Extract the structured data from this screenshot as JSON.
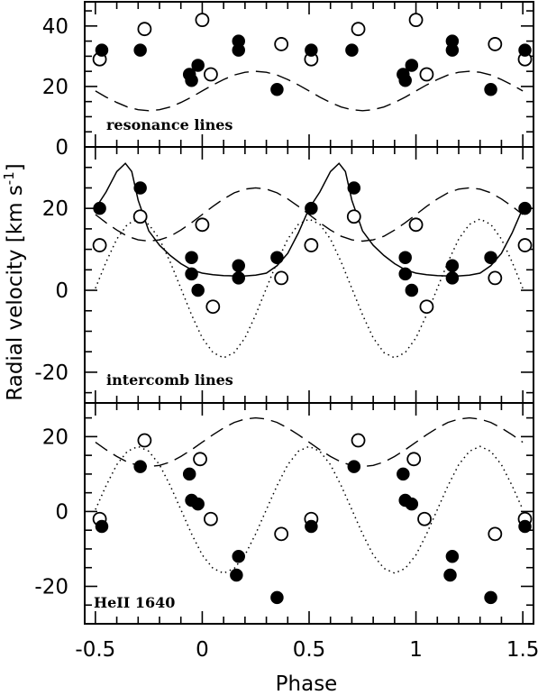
{
  "chart_data": [
    {
      "type": "scatter",
      "annotation": "resonance lines",
      "xlim": [
        -0.55,
        1.55
      ],
      "ylim": [
        0,
        48
      ],
      "yticks_labeled": [
        0,
        20,
        40
      ],
      "filled": {
        "x": [
          -0.47,
          -0.29,
          -0.06,
          -0.05,
          -0.02,
          0.17,
          0.17,
          0.35,
          0.51,
          0.7,
          0.94,
          0.95,
          0.98,
          1.17,
          1.17,
          1.35,
          1.51
        ],
        "y": [
          32,
          32,
          24,
          22,
          27,
          32,
          35,
          19,
          32,
          32,
          24,
          22,
          27,
          32,
          35,
          19,
          32
        ]
      },
      "open": {
        "x": [
          -0.48,
          -0.27,
          0.0,
          0.04,
          0.37,
          0.51,
          0.73,
          1.0,
          1.05,
          1.37,
          1.51
        ],
        "y": [
          29,
          39,
          42,
          24,
          34,
          29,
          39,
          42,
          24,
          34,
          29
        ]
      },
      "curves": [
        {
          "style": "dashed",
          "x": [
            -0.5,
            -0.45,
            -0.4,
            -0.35,
            -0.3,
            -0.25,
            -0.2,
            -0.15,
            -0.1,
            -0.05,
            0,
            0.05,
            0.1,
            0.15,
            0.2,
            0.25,
            0.3,
            0.35,
            0.4,
            0.45,
            0.5,
            0.55,
            0.6,
            0.65,
            0.7,
            0.75,
            0.8,
            0.85,
            0.9,
            0.95,
            1,
            1.05,
            1.1,
            1.15,
            1.2,
            1.25,
            1.3,
            1.35,
            1.4,
            1.45,
            1.5
          ],
          "y": [
            18.5,
            16.5,
            14.7,
            13.2,
            12.3,
            12.0,
            12.3,
            13.2,
            14.7,
            16.5,
            18.5,
            20.5,
            22.3,
            23.8,
            24.7,
            25.0,
            24.7,
            23.8,
            22.3,
            20.5,
            18.5,
            16.5,
            14.7,
            13.2,
            12.3,
            12.0,
            12.3,
            13.2,
            14.7,
            16.5,
            18.5,
            20.5,
            22.3,
            23.8,
            24.7,
            25.0,
            24.7,
            23.8,
            22.3,
            20.5,
            18.5
          ]
        }
      ]
    },
    {
      "type": "scatter",
      "annotation": "intercomb lines",
      "xlim": [
        -0.55,
        1.55
      ],
      "ylim": [
        -27.5,
        35
      ],
      "yticks_labeled": [
        -20,
        0,
        20
      ],
      "ylabel": "Radial velocity [km s",
      "ylabel_sup": "-1",
      "ylabel_end": "]",
      "filled": {
        "x": [
          -0.48,
          -0.29,
          -0.05,
          -0.05,
          -0.02,
          0.17,
          0.17,
          0.35,
          0.51,
          0.71,
          0.95,
          0.95,
          0.98,
          1.17,
          1.17,
          1.35,
          1.51
        ],
        "y": [
          20,
          25,
          8,
          4,
          0,
          6,
          3,
          8,
          20,
          25,
          8,
          4,
          0,
          6,
          3,
          8,
          20
        ]
      },
      "open": {
        "x": [
          -0.48,
          -0.29,
          0.0,
          0.05,
          0.37,
          0.51,
          0.71,
          1.0,
          1.05,
          1.37,
          1.51
        ],
        "y": [
          11,
          18,
          16,
          -4,
          3,
          11,
          18,
          16,
          -4,
          3,
          11
        ]
      },
      "curves": [
        {
          "style": "solid",
          "x": [
            -0.5,
            -0.45,
            -0.4,
            -0.36,
            -0.33,
            -0.3,
            -0.25,
            -0.2,
            -0.15,
            -0.1,
            -0.05,
            0,
            0.05,
            0.1,
            0.15,
            0.2,
            0.25,
            0.3,
            0.35,
            0.4,
            0.45,
            0.5,
            0.55,
            0.6,
            0.64,
            0.67,
            0.7,
            0.75,
            0.8,
            0.85,
            0.9,
            0.95,
            1,
            1.05,
            1.1,
            1.15,
            1.2,
            1.25,
            1.3,
            1.35,
            1.4,
            1.45,
            1.5
          ],
          "y": [
            20,
            24,
            29,
            31,
            29,
            22,
            14.5,
            11,
            8.5,
            6.5,
            5,
            4.2,
            3.8,
            3.6,
            3.5,
            3.5,
            3.7,
            4.2,
            6,
            9,
            14,
            20,
            24,
            29,
            31,
            29,
            22,
            14.5,
            11,
            8.5,
            6.5,
            5,
            4.2,
            3.8,
            3.6,
            3.5,
            3.5,
            3.7,
            4.2,
            6,
            9,
            14,
            20
          ]
        },
        {
          "style": "dotted",
          "x": [
            -0.5,
            -0.45,
            -0.4,
            -0.35,
            -0.3,
            -0.25,
            -0.2,
            -0.15,
            -0.1,
            -0.05,
            0,
            0.05,
            0.1,
            0.15,
            0.2,
            0.25,
            0.3,
            0.35,
            0.4,
            0.45,
            0.5,
            0.55,
            0.6,
            0.65,
            0.7,
            0.75,
            0.8,
            0.85,
            0.9,
            0.95,
            1,
            1.05,
            1.1,
            1.15,
            1.2,
            1.25,
            1.3,
            1.35,
            1.4,
            1.45,
            1.5
          ],
          "y": [
            0.5,
            6.9,
            12.5,
            16.1,
            17.4,
            16.1,
            12.5,
            6.9,
            0.5,
            -6,
            -11.6,
            -15.2,
            -16.5,
            -15.2,
            -11.6,
            -6,
            0.5,
            6.9,
            12.5,
            16.1,
            17.4,
            16.1,
            12.5,
            6.9,
            0.5,
            -6,
            -11.6,
            -15.2,
            -16.5,
            -15.2,
            -11.6,
            -6,
            0.5,
            6.9,
            12.5,
            16.1,
            17.4,
            16.1,
            12.5,
            6.9,
            0.5
          ]
        },
        {
          "style": "dashed",
          "x": [
            -0.5,
            -0.45,
            -0.4,
            -0.35,
            -0.3,
            -0.25,
            -0.2,
            -0.15,
            -0.1,
            -0.05,
            0,
            0.05,
            0.1,
            0.15,
            0.2,
            0.25,
            0.3,
            0.35,
            0.4,
            0.45,
            0.5,
            0.55,
            0.6,
            0.65,
            0.7,
            0.75,
            0.8,
            0.85,
            0.9,
            0.95,
            1,
            1.05,
            1.1,
            1.15,
            1.2,
            1.25,
            1.3,
            1.35,
            1.4,
            1.45,
            1.5
          ],
          "y": [
            18.5,
            16.5,
            14.7,
            13.2,
            12.3,
            12.0,
            12.3,
            13.2,
            14.7,
            16.5,
            18.5,
            20.5,
            22.3,
            23.8,
            24.7,
            25.0,
            24.7,
            23.8,
            22.3,
            20.5,
            18.5,
            16.5,
            14.7,
            13.2,
            12.3,
            12.0,
            12.3,
            13.2,
            14.7,
            16.5,
            18.5,
            20.5,
            22.3,
            23.8,
            24.7,
            25.0,
            24.7,
            23.8,
            22.3,
            20.5,
            18.5
          ]
        }
      ]
    },
    {
      "type": "scatter",
      "annotation": "HeII 1640",
      "xlim": [
        -0.55,
        1.55
      ],
      "ylim": [
        -30,
        29
      ],
      "yticks_labeled": [
        -20,
        0,
        20
      ],
      "xticks_labeled": [
        -0.5,
        0,
        0.5,
        1,
        1.5
      ],
      "xtick_labels": [
        "-0.5",
        "0",
        "0.5",
        "1",
        "1.5"
      ],
      "xlabel": "Phase",
      "filled": {
        "x": [
          -0.47,
          -0.29,
          -0.06,
          -0.05,
          -0.02,
          0.17,
          0.16,
          0.35,
          0.51,
          0.71,
          0.94,
          0.95,
          0.98,
          1.17,
          1.16,
          1.35,
          1.51
        ],
        "y": [
          -4,
          12,
          10,
          3,
          2,
          -12,
          -17,
          -23,
          -4,
          12,
          10,
          3,
          2,
          -12,
          -17,
          -23,
          -4
        ]
      },
      "open": {
        "x": [
          -0.48,
          -0.27,
          -0.01,
          0.04,
          0.37,
          0.51,
          0.73,
          0.99,
          1.04,
          1.37,
          1.51
        ],
        "y": [
          -2,
          19,
          14,
          -2,
          -6,
          -2,
          19,
          14,
          -2,
          -6,
          -2
        ]
      },
      "curves": [
        {
          "style": "dotted",
          "x": [
            -0.5,
            -0.45,
            -0.4,
            -0.35,
            -0.3,
            -0.25,
            -0.2,
            -0.15,
            -0.1,
            -0.05,
            0,
            0.05,
            0.1,
            0.15,
            0.2,
            0.25,
            0.3,
            0.35,
            0.4,
            0.45,
            0.5,
            0.55,
            0.6,
            0.65,
            0.7,
            0.75,
            0.8,
            0.85,
            0.9,
            0.95,
            1,
            1.05,
            1.1,
            1.15,
            1.2,
            1.25,
            1.3,
            1.35,
            1.4,
            1.45,
            1.5
          ],
          "y": [
            0.5,
            6.9,
            12.5,
            16.1,
            17.4,
            16.1,
            12.5,
            6.9,
            0.5,
            -6,
            -11.6,
            -15.2,
            -16.5,
            -15.2,
            -11.6,
            -6,
            0.5,
            6.9,
            12.5,
            16.1,
            17.4,
            16.1,
            12.5,
            6.9,
            0.5,
            -6,
            -11.6,
            -15.2,
            -16.5,
            -15.2,
            -11.6,
            -6,
            0.5,
            6.9,
            12.5,
            16.1,
            17.4,
            16.1,
            12.5,
            6.9,
            0.5
          ]
        },
        {
          "style": "dashed",
          "x": [
            -0.5,
            -0.45,
            -0.4,
            -0.35,
            -0.3,
            -0.25,
            -0.2,
            -0.15,
            -0.1,
            -0.05,
            0,
            0.05,
            0.1,
            0.15,
            0.2,
            0.25,
            0.3,
            0.35,
            0.4,
            0.45,
            0.5,
            0.55,
            0.6,
            0.65,
            0.7,
            0.75,
            0.8,
            0.85,
            0.9,
            0.95,
            1,
            1.05,
            1.1,
            1.15,
            1.2,
            1.25,
            1.3,
            1.35,
            1.4,
            1.45,
            1.5
          ],
          "y": [
            18.5,
            16.5,
            14.7,
            13.2,
            12.3,
            12.0,
            12.3,
            13.2,
            14.7,
            16.5,
            18.5,
            20.5,
            22.3,
            23.8,
            24.7,
            25.0,
            24.7,
            23.8,
            22.3,
            20.5,
            18.5,
            16.5,
            14.7,
            13.2,
            12.3,
            12.0,
            12.3,
            13.2,
            14.7,
            16.5,
            18.5,
            20.5,
            22.3,
            23.8,
            24.7,
            25.0,
            24.7,
            23.8,
            22.3,
            20.5,
            18.5
          ]
        }
      ]
    }
  ]
}
